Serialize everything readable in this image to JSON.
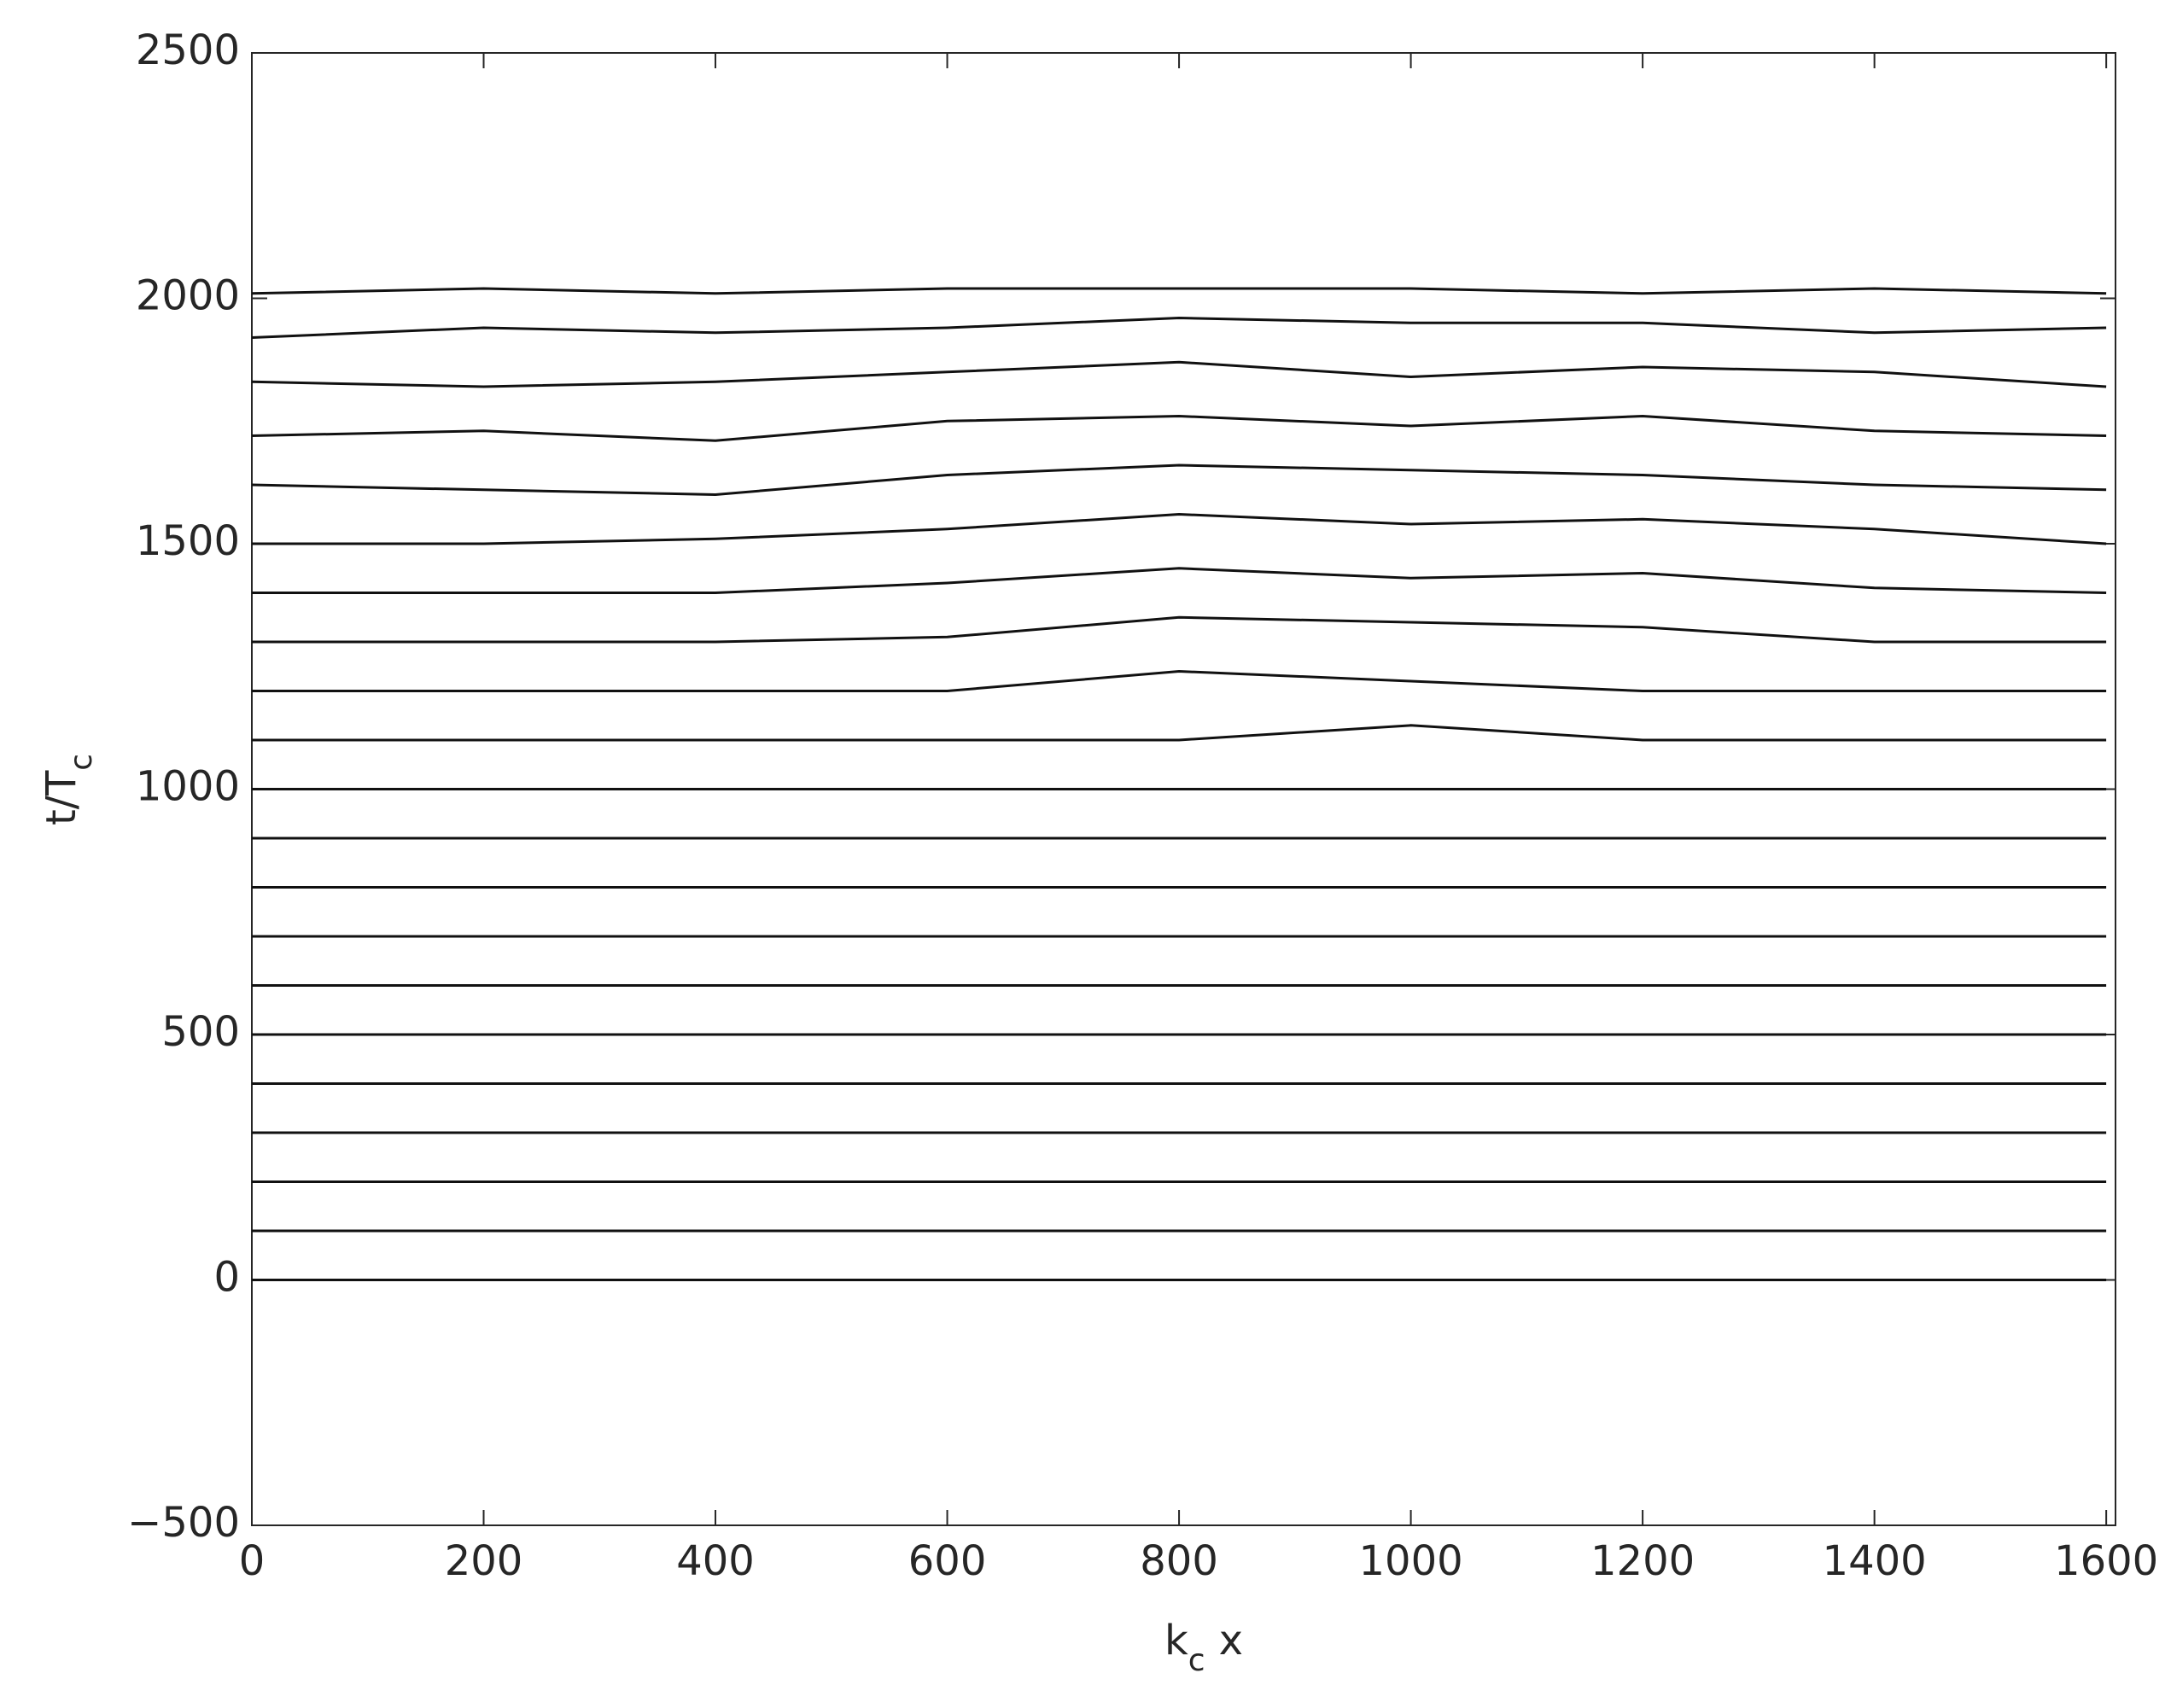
{
  "chart_data": {
    "type": "waterfall",
    "xlabel": {
      "base": "k",
      "sub": "c",
      "rest": "x"
    },
    "ylabel": {
      "base": "t/T",
      "sub": "c"
    },
    "x": [
      0,
      200,
      400,
      600,
      800,
      1000,
      1200,
      1400,
      1600
    ],
    "color": "#111111",
    "series": [
      {
        "values": [
          0,
          0,
          0,
          0,
          0,
          0,
          0,
          0,
          0
        ]
      },
      {
        "values": [
          100,
          100,
          100,
          100,
          100,
          100,
          100,
          100,
          100
        ]
      },
      {
        "values": [
          200,
          200,
          200,
          200,
          200,
          200,
          200,
          200,
          200
        ]
      },
      {
        "values": [
          300,
          300,
          300,
          300,
          300,
          300,
          300,
          300,
          300
        ]
      },
      {
        "values": [
          400,
          400,
          400,
          400,
          400,
          400,
          400,
          400,
          400
        ]
      },
      {
        "values": [
          500,
          500,
          500,
          500,
          500,
          500,
          500,
          500,
          500
        ]
      },
      {
        "values": [
          600,
          600,
          600,
          600,
          600,
          600,
          600,
          600,
          600
        ]
      },
      {
        "values": [
          700,
          700,
          700,
          700,
          700,
          700,
          700,
          700,
          700
        ]
      },
      {
        "values": [
          800,
          800,
          800,
          800,
          800,
          800,
          800,
          800,
          800
        ]
      },
      {
        "values": [
          900,
          900,
          900,
          900,
          900,
          900,
          900,
          900,
          900
        ]
      },
      {
        "values": [
          1000,
          1000,
          1000,
          1000,
          1000,
          1000,
          1000,
          1000,
          1000
        ]
      },
      {
        "values": [
          1100,
          1100,
          1100,
          1100,
          1100,
          1130,
          1100,
          1100,
          1100
        ]
      },
      {
        "values": [
          1200,
          1200,
          1200,
          1200,
          1240,
          1220,
          1200,
          1200,
          1200
        ]
      },
      {
        "values": [
          1300,
          1300,
          1300,
          1310,
          1350,
          1340,
          1330,
          1300,
          1300
        ]
      },
      {
        "values": [
          1400,
          1400,
          1400,
          1420,
          1450,
          1430,
          1440,
          1410,
          1400
        ]
      },
      {
        "values": [
          1500,
          1500,
          1510,
          1530,
          1560,
          1540,
          1550,
          1530,
          1500
        ]
      },
      {
        "values": [
          1620,
          1610,
          1600,
          1640,
          1660,
          1650,
          1640,
          1620,
          1610
        ]
      },
      {
        "values": [
          1720,
          1730,
          1710,
          1750,
          1760,
          1740,
          1760,
          1730,
          1720
        ]
      },
      {
        "values": [
          1830,
          1820,
          1830,
          1850,
          1870,
          1840,
          1860,
          1850,
          1820
        ]
      },
      {
        "values": [
          1920,
          1940,
          1930,
          1940,
          1960,
          1950,
          1950,
          1930,
          1940
        ]
      },
      {
        "values": [
          2010,
          2020,
          2010,
          2020,
          2020,
          2020,
          2010,
          2020,
          2010
        ]
      }
    ],
    "xlim": [
      0,
      1608
    ],
    "xticks": [
      0,
      200,
      400,
      600,
      800,
      1000,
      1200,
      1400,
      1600
    ],
    "ylim": [
      {
        "value": -500,
        "label": "−500"
      },
      2500
    ],
    "yticks": [
      {
        "value": -500,
        "label": "−500"
      },
      0,
      500,
      1000,
      1500,
      2000,
      2500
    ],
    "grid": false
  }
}
